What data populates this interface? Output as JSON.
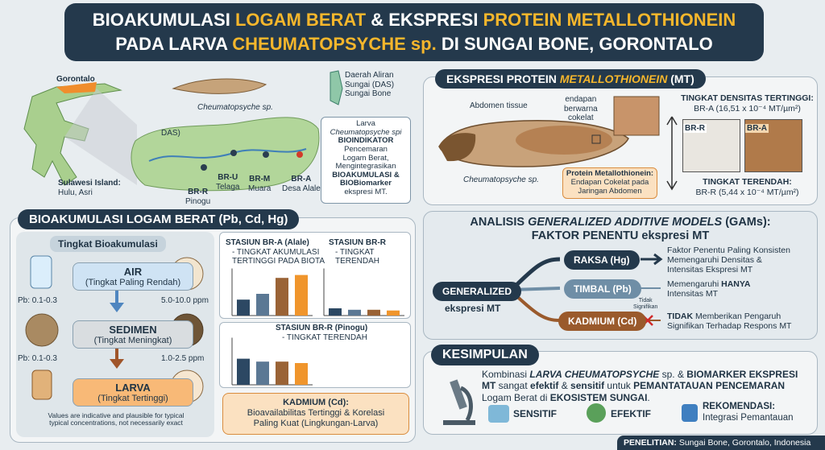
{
  "header": {
    "line1": [
      {
        "text": "BIOAKUMULASI ",
        "highlight": false
      },
      {
        "text": "LOGAM BERAT",
        "highlight": true
      },
      {
        "text": " & EKSPRESI ",
        "highlight": false
      },
      {
        "text": "PROTEIN METALLOTHIONEIN",
        "highlight": true
      }
    ],
    "line2": [
      {
        "text": "PADA LARVA ",
        "highlight": false
      },
      {
        "text": "CHEUMATOPSYCHE sp.",
        "highlight": true
      },
      {
        "text": " DI SUNGAI BONE, GORONTALO",
        "highlight": false
      }
    ]
  },
  "map": {
    "region": "Gorontalo",
    "species": "Cheumatopsyche sp.",
    "das": "DAS)",
    "island": "Sulawesi Island:",
    "island_note": "Hulu, Asri",
    "legend": [
      "Daerah Aliran",
      "Sungai (DAS)",
      "Sungai Bone"
    ],
    "stations": [
      {
        "code": "BR-R",
        "name": "Pinogu"
      },
      {
        "code": "BR-U",
        "name": "Telaga"
      },
      {
        "code": "BR-M",
        "name": "Muara"
      },
      {
        "code": "BR-A",
        "name": "Desa Alale"
      }
    ],
    "info": [
      "Larva",
      "Cheumatopsyche spi",
      "BIOINDIKATOR",
      "Pencemaran",
      "Logam Berat,",
      "Mengintegrasikan",
      "BIOAKUMULASI &",
      "BIOBiomarker",
      "ekspresi MT."
    ]
  },
  "bioaccumulation": {
    "heading": "BIOAKUMULASI LOGAM BERAT (Pb, Cd, Hg)",
    "levels_title": "Tingkat Bioakumulasi",
    "levels": [
      {
        "name": "AIR",
        "desc": "(Tingkat Paling Rendah)",
        "left": "Pb: 0.1-0.3",
        "right": "5.0-10.0 ppm"
      },
      {
        "name": "SEDIMEN",
        "desc": "(Tingkat Meningkat)",
        "left": "Pb: 0.1-0.3",
        "right": "1.0-2.5 ppm"
      },
      {
        "name": "LARVA",
        "desc": "(Tingkat Tertinggi)"
      }
    ],
    "note": [
      "Values are indicative and plausible for typical",
      "typical concentrations, not necessarily exact"
    ],
    "charts": [
      {
        "title": "STASIUN BR-A (Alale)",
        "subtitle": [
          "- TINGKAT AKUMULASI",
          "TERTINGGI PADA BIOTA"
        ],
        "values": [
          22,
          30,
          52,
          56
        ]
      },
      {
        "title": "STASIUN BR-R",
        "subtitle": [
          "- TINGKAT",
          "TERENDAH"
        ],
        "values": [
          10,
          8,
          8,
          7
        ]
      },
      {
        "title": "STASIUN BR-R (Pinogu)",
        "subtitle": [
          "- TINGKAT TERENDAH"
        ],
        "values": [
          36,
          32,
          32,
          30
        ]
      }
    ],
    "bar_colors": [
      "#2c4863",
      "#5b7894",
      "#9a6336",
      "#f0952c"
    ],
    "cadmium": {
      "title": "KADMIUM (Cd):",
      "text": [
        "Bioavailabilitas Tertinggi & Korelasi",
        "Paling Kuat (Lingkungan-Larva)"
      ]
    }
  },
  "mt": {
    "heading": [
      "EKSPRESI PROTEIN ",
      "METALLOTHIONEIN",
      " (MT)"
    ],
    "abdomen": "Abdomen tissue",
    "deposit": [
      "endapan",
      "berwarna",
      "cokelat"
    ],
    "species": "Cheumatopsyche sp.",
    "protein_box": {
      "title": "Protein Metallothionein:",
      "text": [
        "Endapan Cokelat pada",
        "Jaringan Abdomen"
      ]
    },
    "highest": {
      "title": "TINGKAT DENSITAS TERTINGGI:",
      "value": "BR-A (16,51 x 10⁻⁴ MT/µm²)"
    },
    "samples": [
      "BR-R",
      "BR-A"
    ],
    "lowest": {
      "title": "TINGKAT TERENDAH:",
      "value": "BR-R (5,44 x 10⁻⁴ MT/µm²)"
    }
  },
  "gam": {
    "title": [
      "ANALISIS ",
      "GENERALIZED ADDITIVE MODELS",
      " (GAMs):"
    ],
    "subtitle": "FAKTOR PENENTU ekspresi MT",
    "source": [
      "GENERALIZED",
      "ekspresi MT"
    ],
    "factors": [
      {
        "name": "RAKSA (Hg)",
        "color": "#24394c",
        "effect": [
          "Faktor Penentu Paling Konsisten",
          "Memengaruhi Densitas &",
          "Intensitas Ekspresi MT"
        ]
      },
      {
        "name": "TIMBAL (Pb)",
        "color": "#6f8ea6",
        "effect": [
          "Memengaruhi ",
          "HANYA",
          "Intensitas MT"
        ]
      },
      {
        "name": "KADMIUM (Cd)",
        "color": "#9a5a2c",
        "effect": [
          "TIDAK",
          " Memberikan Pengaruh",
          "Signifikan Terhadap Respons MT"
        ],
        "note": [
          "Tidak",
          "Signifikan"
        ]
      }
    ]
  },
  "conclusion": {
    "heading": "KESIMPULAN",
    "text": [
      [
        "Kombinasi ",
        "LARVA CHEUMATOPSYCHE",
        " sp. & ",
        "BIOMARKER EKSPRESI"
      ],
      [
        "MT",
        " sangat ",
        "efektif",
        " & ",
        "sensitif",
        " untuk ",
        "PEMANTATAUAN PENCEMARAN"
      ],
      [
        "Logam Berat di ",
        "EKOSISTEM SUNGAI",
        "."
      ]
    ],
    "badges": [
      "SENSITIF",
      "EFEKTIF"
    ],
    "recommendation": {
      "title": "REKOMENDASI:",
      "text": "Integrasi Pemantauan"
    }
  },
  "footer": [
    "PENELITIAN:",
    " Sungai Bone, Gorontalo, Indonesia"
  ]
}
